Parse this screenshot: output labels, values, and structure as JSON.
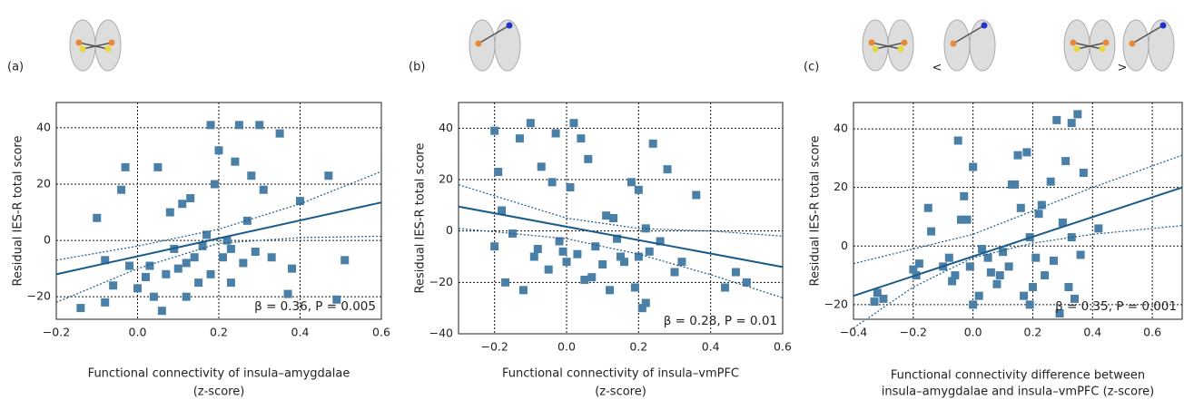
{
  "chart_data": [
    {
      "type": "scatter",
      "panel_label": "(a)",
      "xlabel": [
        "Functional connectivity of insula–amygdalae",
        "(z-score)"
      ],
      "ylabel": "Residual IES-R total score",
      "annotation": "β = 0.36, P = 0.005",
      "xlim": [
        -0.2,
        0.6
      ],
      "ylim": [
        -28,
        49
      ],
      "xticks": [
        {
          "value": -0.2,
          "label": "−0.2"
        },
        {
          "value": 0,
          "label": "0.0"
        },
        0.2,
        0.4,
        0.6
      ],
      "yticks": [
        {
          "value": -20,
          "label": "−20"
        },
        0,
        20,
        40
      ],
      "grid": true,
      "color": "#4a7fa7",
      "line_color": "#1a5b89",
      "x": [
        -0.14,
        -0.1,
        -0.08,
        -0.06,
        -0.04,
        -0.03,
        -0.02,
        0.0,
        0.02,
        0.04,
        0.05,
        0.06,
        0.08,
        0.09,
        0.1,
        0.11,
        0.12,
        0.13,
        0.14,
        0.15,
        0.16,
        0.18,
        0.19,
        0.2,
        0.21,
        0.22,
        0.23,
        0.24,
        0.25,
        0.26,
        0.27,
        0.28,
        0.29,
        0.3,
        0.31,
        0.33,
        0.35,
        0.37,
        0.38,
        0.4,
        0.47,
        0.49,
        0.51,
        0.18,
        0.12,
        0.07,
        -0.08,
        0.03,
        0.17,
        0.23
      ],
      "values": [
        -24,
        8,
        -22,
        -16,
        18,
        26,
        -9,
        -17,
        -13,
        -20,
        26,
        -25,
        10,
        -3,
        -10,
        13,
        -20,
        15,
        -6,
        -15,
        -2,
        -12,
        20,
        32,
        -6,
        0,
        -15,
        28,
        41,
        -8,
        7,
        23,
        -4,
        41,
        18,
        -6,
        38,
        -19,
        -10,
        14,
        23,
        -21,
        -7,
        41,
        -8,
        -12,
        -7,
        -9,
        2,
        -3
      ],
      "fit": {
        "x": [
          -0.2,
          0.6
        ],
        "values": [
          -12,
          13.5
        ]
      },
      "ci_upper": {
        "x": [
          -0.2,
          0,
          0.2,
          0.4,
          0.6
        ],
        "values": [
          -7,
          -2,
          4,
          13,
          24.5
        ]
      },
      "ci_lower": {
        "x": [
          -0.2,
          0,
          0.2,
          0.4,
          0.6
        ],
        "values": [
          -22,
          -10,
          -1,
          1,
          1.5
        ]
      }
    },
    {
      "type": "scatter",
      "panel_label": "(b)",
      "xlabel": [
        "Functional connectivity of insula–vmPFC",
        "(z-score)"
      ],
      "ylabel": "Residual IES-R total score",
      "annotation": "β = 0.28, P = 0.01",
      "xlim": [
        -0.3,
        0.6
      ],
      "ylim": [
        -40,
        50
      ],
      "xticks": [
        {
          "value": -0.2,
          "label": "−0.2"
        },
        {
          "value": 0,
          "label": "0.0"
        },
        0.2,
        0.4,
        0.6
      ],
      "yticks": [
        {
          "value": -40,
          "label": "−40"
        },
        {
          "value": -20,
          "label": "−20"
        },
        0,
        20,
        40
      ],
      "grid": true,
      "color": "#4a7fa7",
      "line_color": "#1a5b89",
      "x": [
        -0.2,
        -0.19,
        -0.18,
        -0.2,
        -0.17,
        -0.15,
        -0.13,
        -0.12,
        -0.1,
        -0.08,
        -0.07,
        -0.05,
        -0.04,
        -0.03,
        -0.02,
        0.0,
        0.01,
        0.02,
        0.03,
        0.04,
        0.06,
        0.07,
        0.08,
        0.1,
        0.11,
        0.12,
        0.14,
        0.16,
        0.18,
        0.19,
        0.2,
        0.21,
        0.22,
        0.23,
        0.24,
        0.26,
        0.28,
        0.3,
        0.32,
        0.36,
        0.44,
        0.47,
        0.5,
        0.2,
        -0.09,
        -0.01,
        0.15,
        0.22,
        0.05,
        0.13
      ],
      "values": [
        39,
        23,
        8,
        -6,
        -20,
        -1,
        36,
        -23,
        42,
        -7,
        25,
        -15,
        19,
        38,
        -4,
        -12,
        17,
        42,
        -9,
        36,
        28,
        -18,
        -6,
        -13,
        6,
        -23,
        -3,
        -12,
        19,
        -22,
        16,
        -30,
        1,
        -8,
        34,
        -4,
        24,
        -16,
        -12,
        14,
        -22,
        -16,
        -20,
        -10,
        -10,
        -8,
        -10,
        -28,
        -19,
        5
      ],
      "fit": {
        "x": [
          -0.3,
          0.6
        ],
        "values": [
          9.5,
          -14
        ]
      },
      "ci_upper": {
        "x": [
          -0.3,
          0,
          0.2,
          0.4,
          0.6
        ],
        "values": [
          18,
          5,
          1,
          0,
          -2
        ]
      },
      "ci_lower": {
        "x": [
          -0.3,
          0,
          0.2,
          0.4,
          0.6
        ],
        "values": [
          1,
          -3,
          -9,
          -17,
          -26
        ]
      }
    },
    {
      "type": "scatter",
      "panel_label": "(c)",
      "comparison_symbols": [
        "<",
        ">"
      ],
      "xlabel": [
        "Functional connectivity difference between",
        "insula–amygdalae and insula–vmPFC (z-score)"
      ],
      "ylabel": "Residual IES-R total score",
      "annotation": "β = 0.35, P = 0.001",
      "xlim": [
        -0.4,
        0.7
      ],
      "ylim": [
        -25,
        49
      ],
      "xticks": [
        {
          "value": -0.4,
          "label": "−0.4"
        },
        {
          "value": -0.2,
          "label": "−0.2"
        },
        {
          "value": 0,
          "label": "0.0"
        },
        0.2,
        0.4,
        0.6
      ],
      "yticks": [
        {
          "value": -20,
          "label": "−20"
        },
        0,
        20,
        40
      ],
      "grid": true,
      "color": "#4a7fa7",
      "line_color": "#1a5b89",
      "x": [
        -0.33,
        -0.32,
        -0.3,
        -0.2,
        -0.18,
        -0.15,
        -0.14,
        -0.1,
        -0.08,
        -0.07,
        -0.06,
        -0.05,
        -0.04,
        -0.03,
        -0.02,
        0.0,
        -0.01,
        0.0,
        0.02,
        0.03,
        0.05,
        0.06,
        0.08,
        0.1,
        0.12,
        0.13,
        0.14,
        0.15,
        0.16,
        0.17,
        0.18,
        0.19,
        0.2,
        0.21,
        0.22,
        0.23,
        0.24,
        0.26,
        0.27,
        0.28,
        0.29,
        0.3,
        0.31,
        0.32,
        0.33,
        0.34,
        0.35,
        0.36,
        0.37,
        0.42,
        0.19,
        0.09,
        -0.19,
        0.33
      ],
      "values": [
        -19,
        -16,
        -18,
        -8,
        -6,
        13,
        5,
        -7,
        -4,
        -12,
        -10,
        36,
        9,
        17,
        9,
        27,
        -7,
        -20,
        -17,
        -1,
        -4,
        -9,
        -13,
        -2,
        -7,
        21,
        21,
        31,
        13,
        -17,
        32,
        -20,
        -14,
        -4,
        11,
        14,
        -10,
        22,
        -5,
        43,
        -23,
        8,
        29,
        -14,
        42,
        -18,
        45,
        -3,
        25,
        6,
        3,
        -10,
        -10,
        3
      ],
      "fit": {
        "x": [
          -0.4,
          0.7
        ],
        "values": [
          -17,
          20
        ]
      },
      "ci_upper": {
        "x": [
          -0.4,
          -0.2,
          0,
          0.2,
          0.4,
          0.7
        ],
        "values": [
          -6,
          -1,
          4,
          12,
          20,
          31
        ]
      },
      "ci_lower": {
        "x": [
          -0.4,
          -0.2,
          0,
          0.2,
          0.4,
          0.7
        ],
        "values": [
          -28,
          -14,
          -4,
          1,
          4,
          7
        ]
      }
    }
  ]
}
